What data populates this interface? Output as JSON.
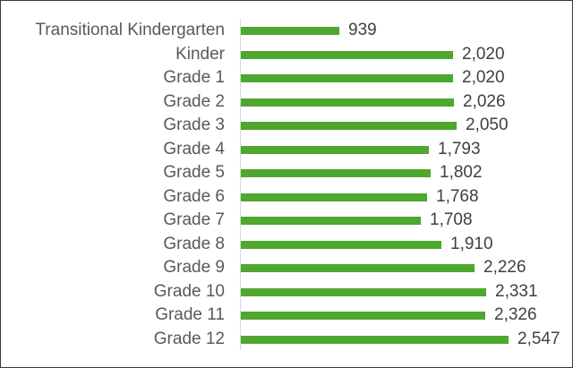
{
  "chart_data": {
    "type": "bar",
    "orientation": "horizontal",
    "title": "",
    "xlabel": "",
    "ylabel": "",
    "categories": [
      "Transitional Kindergarten",
      "Kinder",
      "Grade 1",
      "Grade 2",
      "Grade 3",
      "Grade 4",
      "Grade 5",
      "Grade 6",
      "Grade 7",
      "Grade 8",
      "Grade 9",
      "Grade 10",
      "Grade 11",
      "Grade 12"
    ],
    "values": [
      939,
      2020,
      2020,
      2026,
      2050,
      1793,
      1802,
      1768,
      1708,
      1910,
      2226,
      2331,
      2326,
      2547
    ],
    "value_labels": [
      "939",
      "2,020",
      "2,020",
      "2,026",
      "2,050",
      "1,793",
      "1,802",
      "1,768",
      "1,708",
      "1,910",
      "2,226",
      "2,331",
      "2,326",
      "2,547"
    ],
    "bar_color": "#4ea72e",
    "grid": false,
    "legend": null
  }
}
